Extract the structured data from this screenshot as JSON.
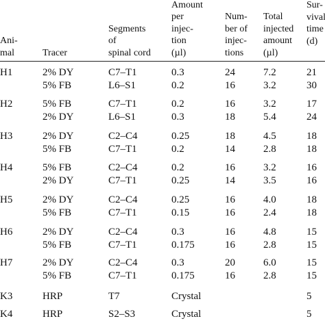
{
  "table": {
    "header": [
      [
        "Ani-",
        "mal"
      ],
      [
        "Tracer"
      ],
      [
        "Segments",
        "of",
        "spinal cord"
      ],
      [
        "Amount",
        "per",
        "injec-",
        "tion",
        "(µl)"
      ],
      [
        "Num-",
        "ber of",
        "injec-",
        "tions"
      ],
      [
        "Total",
        "injected",
        "amount",
        "(µl)"
      ],
      [
        "Sur-",
        "vival",
        "time",
        "(d)"
      ]
    ],
    "groups": [
      {
        "animal": "H1",
        "rows": [
          [
            "2% DY",
            "C7–T1",
            "0.3",
            "24",
            "7.2",
            "21"
          ],
          [
            "5% FB",
            "L6–S1",
            "0.2",
            "16",
            "3.2",
            "30"
          ]
        ]
      },
      {
        "animal": "H2",
        "rows": [
          [
            "5% FB",
            "C7–T1",
            "0.2",
            "16",
            "3.2",
            "17"
          ],
          [
            "2% DY",
            "L6–S1",
            "0.3",
            "18",
            "5.4",
            "24"
          ]
        ]
      },
      {
        "animal": "H3",
        "rows": [
          [
            "2% DY",
            "C2–C4",
            "0.25",
            "18",
            "4.5",
            "18"
          ],
          [
            "5% FB",
            "C7–T1",
            "0.2",
            "14",
            "2.8",
            "18"
          ]
        ]
      },
      {
        "animal": "H4",
        "rows": [
          [
            "5% FB",
            "C2–C4",
            "0.2",
            "16",
            "3.2",
            "16"
          ],
          [
            "2% DY",
            "C7–T1",
            "0.25",
            "14",
            "3.5",
            "16"
          ]
        ]
      },
      {
        "animal": "H5",
        "rows": [
          [
            "2% DY",
            "C2–C4",
            "0.25",
            "16",
            "4.0",
            "18"
          ],
          [
            "5% FB",
            "C7–T1",
            "0.15",
            "16",
            "2.4",
            "18"
          ]
        ]
      },
      {
        "animal": "H6",
        "rows": [
          [
            "2% DY",
            "C2–C4",
            "0.3",
            "16",
            "4.8",
            "15"
          ],
          [
            "5% FB",
            "C7–T1",
            "0.175",
            "16",
            "2.8",
            "15"
          ]
        ]
      },
      {
        "animal": "H7",
        "rows": [
          [
            "2% DY",
            "C2–C4",
            "0.3",
            "20",
            "6.0",
            "15"
          ],
          [
            "5% FB",
            "C7–T1",
            "0.175",
            "16",
            "2.8",
            "15"
          ]
        ]
      },
      {
        "animal": "K3",
        "rows": [
          [
            "HRP",
            "T7",
            "Crystal",
            null,
            null,
            "5"
          ]
        ]
      },
      {
        "animal": "K4",
        "rows": [
          [
            "HRP",
            "S2–S3",
            "Crystal",
            null,
            null,
            "5"
          ]
        ]
      }
    ]
  }
}
